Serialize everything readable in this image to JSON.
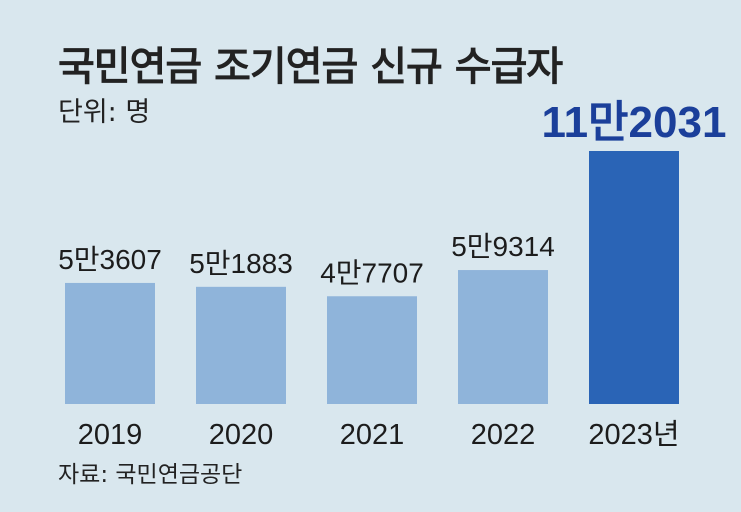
{
  "colors": {
    "background": "#d9e7ee",
    "bar": "#8fb4da",
    "bar_highlight": "#2a64b6",
    "highlight_text": "#1b3f9a"
  },
  "chart_data": {
    "type": "bar",
    "title": "국민연금 조기연금 신규 수급자",
    "unit_label": "단위: 명",
    "source": "자료: 국민연금공단",
    "categories": [
      "2019",
      "2020",
      "2021",
      "2022",
      "2023년"
    ],
    "values": [
      53607,
      51883,
      47707,
      59314,
      112031
    ],
    "value_labels": [
      "5만3607",
      "5만1883",
      "4만7707",
      "5만9314",
      "11만2031"
    ],
    "highlight_index": 4,
    "ylim": [
      0,
      112031
    ],
    "grid": false,
    "legend": "none"
  }
}
